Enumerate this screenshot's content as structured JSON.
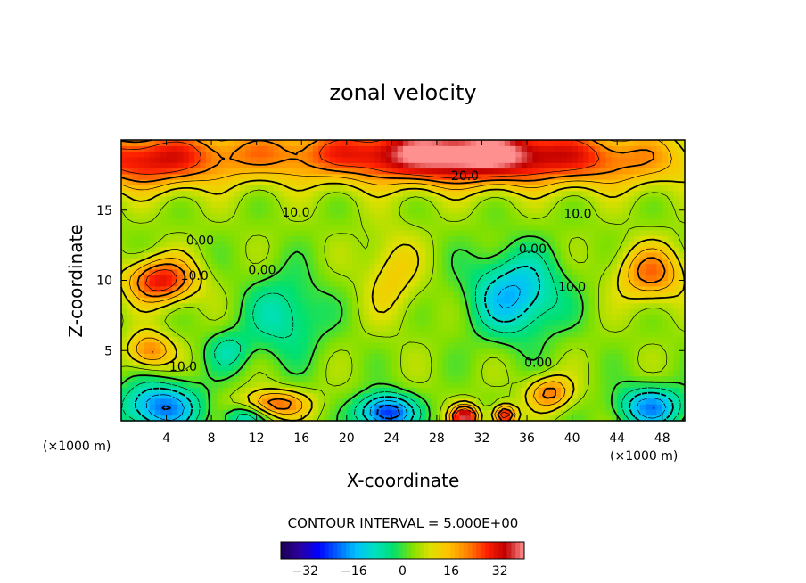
{
  "chart_data": {
    "type": "heatmap",
    "subtype": "filled contour",
    "title": "zonal velocity",
    "xlabel": "X-coordinate",
    "ylabel": "Z-coordinate",
    "x_unit": "(×1000 m)",
    "x_unit_right": "(×1000 m)",
    "xlim": [
      0,
      50
    ],
    "ylim": [
      0,
      20
    ],
    "x_ticks": [
      4,
      8,
      12,
      16,
      20,
      24,
      28,
      32,
      36,
      40,
      44,
      48
    ],
    "y_ticks": [
      5,
      10,
      15
    ],
    "contour_interval_text": "CONTOUR INTERVAL = 5.000E+00",
    "contour_interval": 5,
    "colorbar": {
      "min": -40,
      "max": 40,
      "ticks": [
        -32,
        -16,
        0,
        16,
        32
      ],
      "colors": [
        "#1a0050",
        "#2a00a0",
        "#0000ff",
        "#0060ff",
        "#00c0ff",
        "#00e0c0",
        "#00e070",
        "#80e000",
        "#e0e000",
        "#ffc000",
        "#ff8000",
        "#ff2000",
        "#c00000",
        "#ff9090"
      ]
    },
    "contour_labels": [
      {
        "text": "20.0",
        "x": 30.5,
        "z": 17.4
      },
      {
        "text": "10.0",
        "x": 15.5,
        "z": 14.8
      },
      {
        "text": "10.0",
        "x": 40.5,
        "z": 14.7
      },
      {
        "text": "0.00",
        "x": 7.0,
        "z": 12.8
      },
      {
        "text": "0.00",
        "x": 12.5,
        "z": 10.7
      },
      {
        "text": "0.00",
        "x": 36.5,
        "z": 12.2
      },
      {
        "text": "10.0",
        "x": 6.5,
        "z": 10.3
      },
      {
        "text": "10.0",
        "x": 40.0,
        "z": 9.5
      },
      {
        "text": "10.0",
        "x": 5.5,
        "z": 3.8
      },
      {
        "text": "0.00",
        "x": 37.0,
        "z": 4.1
      }
    ],
    "field_features": [
      {
        "x": 31.0,
        "z": 19.0,
        "value": 28,
        "sx": 9,
        "sz": 2.0
      },
      {
        "x": 20.0,
        "z": 19.0,
        "value": 18,
        "sx": 20,
        "sz": 2.0
      },
      {
        "x": 2.0,
        "z": 18.5,
        "value": 20,
        "sx": 6,
        "sz": 2.0
      },
      {
        "x": 44.0,
        "z": 18.5,
        "value": 12,
        "sx": 8,
        "sz": 2.0
      },
      {
        "x": 3.5,
        "z": 10.0,
        "value": 26,
        "sx": 3,
        "sz": 1.6
      },
      {
        "x": 47.0,
        "z": 10.5,
        "value": 18,
        "sx": 3,
        "sz": 2.0
      },
      {
        "x": 2.5,
        "z": 5.0,
        "value": 18,
        "sx": 2,
        "sz": 1.3
      },
      {
        "x": 14.5,
        "z": 7.5,
        "value": -12,
        "sx": 3.5,
        "sz": 3.0
      },
      {
        "x": 35.0,
        "z": 9.0,
        "value": -20,
        "sx": 4.0,
        "sz": 3.0
      },
      {
        "x": 24.0,
        "z": 10.5,
        "value": 9,
        "sx": 2.5,
        "sz": 3.0
      },
      {
        "x": 3.5,
        "z": 1.0,
        "value": -24,
        "sx": 3.5,
        "sz": 1.8
      },
      {
        "x": 9.5,
        "z": 5.0,
        "value": -10,
        "sx": 2.0,
        "sz": 1.5
      },
      {
        "x": 13.5,
        "z": 1.2,
        "value": 20,
        "sx": 3.0,
        "sz": 1.0
      },
      {
        "x": 23.5,
        "z": 0.6,
        "value": -30,
        "sx": 2.5,
        "sz": 1.3
      },
      {
        "x": 30.5,
        "z": 0.3,
        "value": 32,
        "sx": 1.2,
        "sz": 0.8
      },
      {
        "x": 34.0,
        "z": 0.4,
        "value": 28,
        "sx": 1.0,
        "sz": 0.7
      },
      {
        "x": 38.0,
        "z": 2.0,
        "value": 18,
        "sx": 2.0,
        "sz": 1.2
      },
      {
        "x": 47.0,
        "z": 1.0,
        "value": -22,
        "sx": 3.0,
        "sz": 1.5
      },
      {
        "x": 11.0,
        "z": 0.3,
        "value": -14,
        "sx": 2.0,
        "sz": 1.0
      }
    ],
    "background_value": 4
  }
}
